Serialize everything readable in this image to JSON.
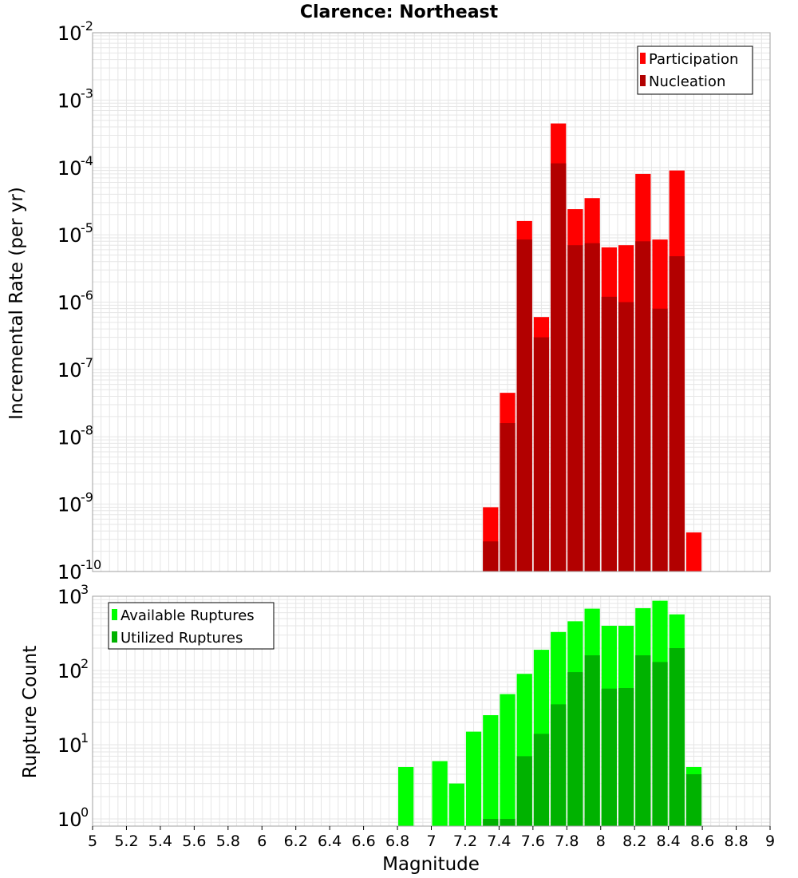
{
  "title": "Clarence: Northeast",
  "colors": {
    "participation": "#ff0000",
    "nucleation": "#b20000",
    "available": "#00ff00",
    "utilized": "#00b200",
    "grid": "#e6e6e6",
    "frame": "#a0a0a0"
  },
  "chart_data": [
    {
      "type": "bar",
      "ylabel": "Incremental Rate (per yr)",
      "yscale": "log",
      "ylim": [
        1e-10,
        0.01
      ],
      "xlim": [
        5,
        9
      ],
      "grid": true,
      "legend": "top-right",
      "ytick_labels": [
        {
          "base": "10",
          "exp": "-10"
        },
        {
          "base": "10",
          "exp": "-9"
        },
        {
          "base": "10",
          "exp": "-8"
        },
        {
          "base": "10",
          "exp": "-7"
        },
        {
          "base": "10",
          "exp": "-6"
        },
        {
          "base": "10",
          "exp": "-5"
        },
        {
          "base": "10",
          "exp": "-4"
        },
        {
          "base": "10",
          "exp": "-3"
        },
        {
          "base": "10",
          "exp": "-2"
        }
      ],
      "x": [
        7.35,
        7.45,
        7.55,
        7.65,
        7.75,
        7.85,
        7.95,
        8.05,
        8.15,
        8.25,
        8.35,
        8.45,
        8.55
      ],
      "series": [
        {
          "name": "Participation",
          "values": [
            9e-10,
            4.5e-08,
            1.6e-05,
            6e-07,
            0.00045,
            2.4e-05,
            3.5e-05,
            6.5e-06,
            7e-06,
            8e-05,
            8.5e-06,
            9e-05,
            3.8e-10
          ]
        },
        {
          "name": "Nucleation",
          "values": [
            2.8e-10,
            1.6e-08,
            8.5e-06,
            3e-07,
            0.000115,
            7e-06,
            7.5e-06,
            1.2e-06,
            1e-06,
            8e-06,
            8e-07,
            4.8e-06,
            null
          ]
        }
      ]
    },
    {
      "type": "bar",
      "ylabel": "Rupture Count",
      "xlabel": "Magnitude",
      "yscale": "log",
      "ylim": [
        0.8,
        1000
      ],
      "xlim": [
        5,
        9
      ],
      "grid": true,
      "legend": "top-left",
      "ytick_labels": [
        {
          "base": "10",
          "exp": "0"
        },
        {
          "base": "10",
          "exp": "1"
        },
        {
          "base": "10",
          "exp": "2"
        },
        {
          "base": "10",
          "exp": "3"
        }
      ],
      "xtick_labels": [
        "5",
        "5.2",
        "5.4",
        "5.6",
        "5.8",
        "6",
        "6.2",
        "6.4",
        "6.6",
        "6.8",
        "7",
        "7.2",
        "7.4",
        "7.6",
        "7.8",
        "8",
        "8.2",
        "8.4",
        "8.6",
        "8.8",
        "9"
      ],
      "x": [
        6.85,
        7.05,
        7.15,
        7.25,
        7.35,
        7.45,
        7.55,
        7.65,
        7.75,
        7.85,
        7.95,
        8.05,
        8.15,
        8.25,
        8.35,
        8.45,
        8.55
      ],
      "series": [
        {
          "name": "Available Ruptures",
          "values": [
            5,
            6,
            3,
            15,
            25,
            48,
            90,
            190,
            330,
            460,
            680,
            400,
            400,
            690,
            870,
            570,
            5
          ]
        },
        {
          "name": "Utilized Ruptures",
          "values": [
            null,
            null,
            null,
            null,
            1,
            1,
            7,
            14,
            35,
            95,
            160,
            57,
            58,
            160,
            130,
            200,
            4
          ]
        }
      ]
    }
  ]
}
